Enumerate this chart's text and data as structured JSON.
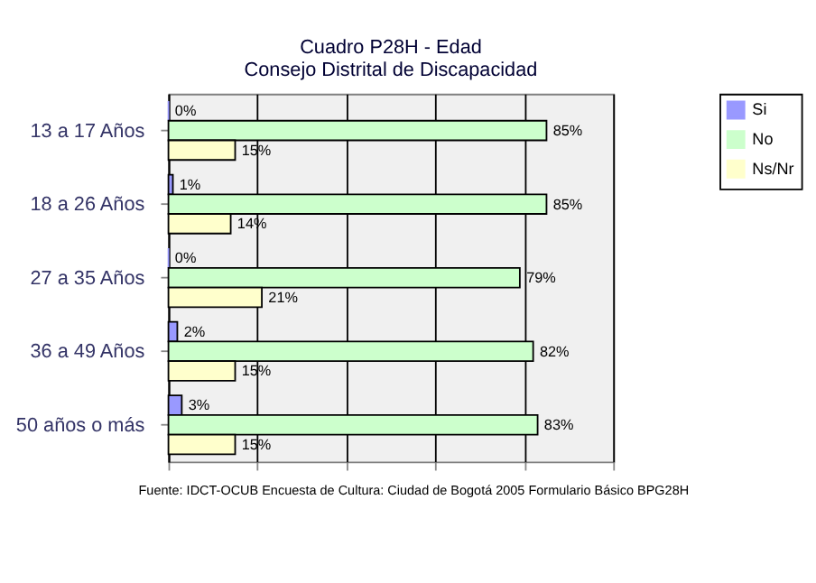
{
  "chart_data": {
    "type": "bar",
    "orientation": "horizontal",
    "title": [
      "Cuadro P28H - Edad",
      "Consejo Distrital de Discapacidad"
    ],
    "categories": [
      "13 a 17 Años",
      "18 a 26 Años",
      "27 a 35 Años",
      "36 a 49 Años",
      "50 años o más"
    ],
    "series": [
      {
        "name": "Si",
        "color": "#9999ff",
        "values": [
          0,
          1,
          0,
          2,
          3
        ],
        "value_labels": [
          "0%",
          "1%",
          "0%",
          "2%",
          "3%"
        ]
      },
      {
        "name": "No",
        "color": "#ccffcc",
        "values": [
          85,
          85,
          79,
          82,
          83
        ],
        "value_labels": [
          "85%",
          "85%",
          "79%",
          "82%",
          "83%"
        ]
      },
      {
        "name": "Ns/Nr",
        "color": "#ffffcc",
        "values": [
          15,
          14,
          21,
          15,
          15
        ],
        "value_labels": [
          "15%",
          "14%",
          "21%",
          "15%",
          "15%"
        ]
      }
    ],
    "xlim": [
      0,
      100
    ],
    "xticks": [
      {
        "value": 0,
        "label": null
      },
      {
        "value": 20,
        "label": null
      },
      {
        "value": 40,
        "label": null
      },
      {
        "value": 60,
        "label": null
      },
      {
        "value": 80,
        "label": null
      },
      {
        "value": 100,
        "label": null
      }
    ],
    "tick_labels": "y",
    "grid": "x",
    "legend": "right",
    "annotations": [
      "Fuente: IDCT-OCUB Encuesta de Cultura: Ciudad de Bogotá 2005 Formulario Básico BPG28H"
    ]
  }
}
